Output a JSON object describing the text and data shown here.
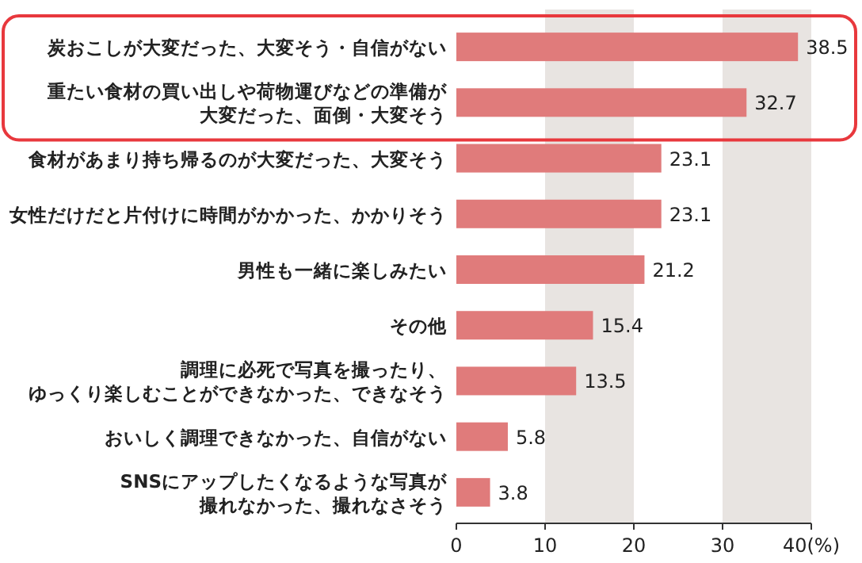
{
  "chart_data": {
    "type": "bar",
    "orientation": "horizontal",
    "categories": [
      "炭おこしが大変だった、大変そう・自信がない",
      "重たい食材の買い出しや荷物運びなどの準備が大変だった、面倒・大変そう",
      "食材があまり持ち帰るのが大変だった、大変そう",
      "女性だけだと片付けに時間がかかった、かかりそう",
      "男性も一緒に楽しみたい",
      "その他",
      "調理に必死で写真を撮ったり、ゆっくり楽しむことができなかった、できなそう",
      "おいしく調理できなかった、自信がない",
      "SNSにアップしたくなるような写真が撮れなかった、撮れなさそう"
    ],
    "values": [
      38.5,
      32.7,
      23.1,
      23.1,
      21.2,
      15.4,
      13.5,
      5.8,
      3.8
    ],
    "color": "#e07b7b",
    "data_labels": true,
    "xlim": [
      0,
      40
    ],
    "xticks": [
      0,
      10,
      20,
      30,
      {
        "value": 40,
        "label": "40(%)"
      }
    ],
    "bands": [
      {
        "axis": "x",
        "from": 10,
        "to": 20,
        "color": "#e8e4e1"
      },
      {
        "axis": "x",
        "from": 30,
        "to": 40,
        "color": "#e8e4e1"
      }
    ],
    "grid": false
  }
}
